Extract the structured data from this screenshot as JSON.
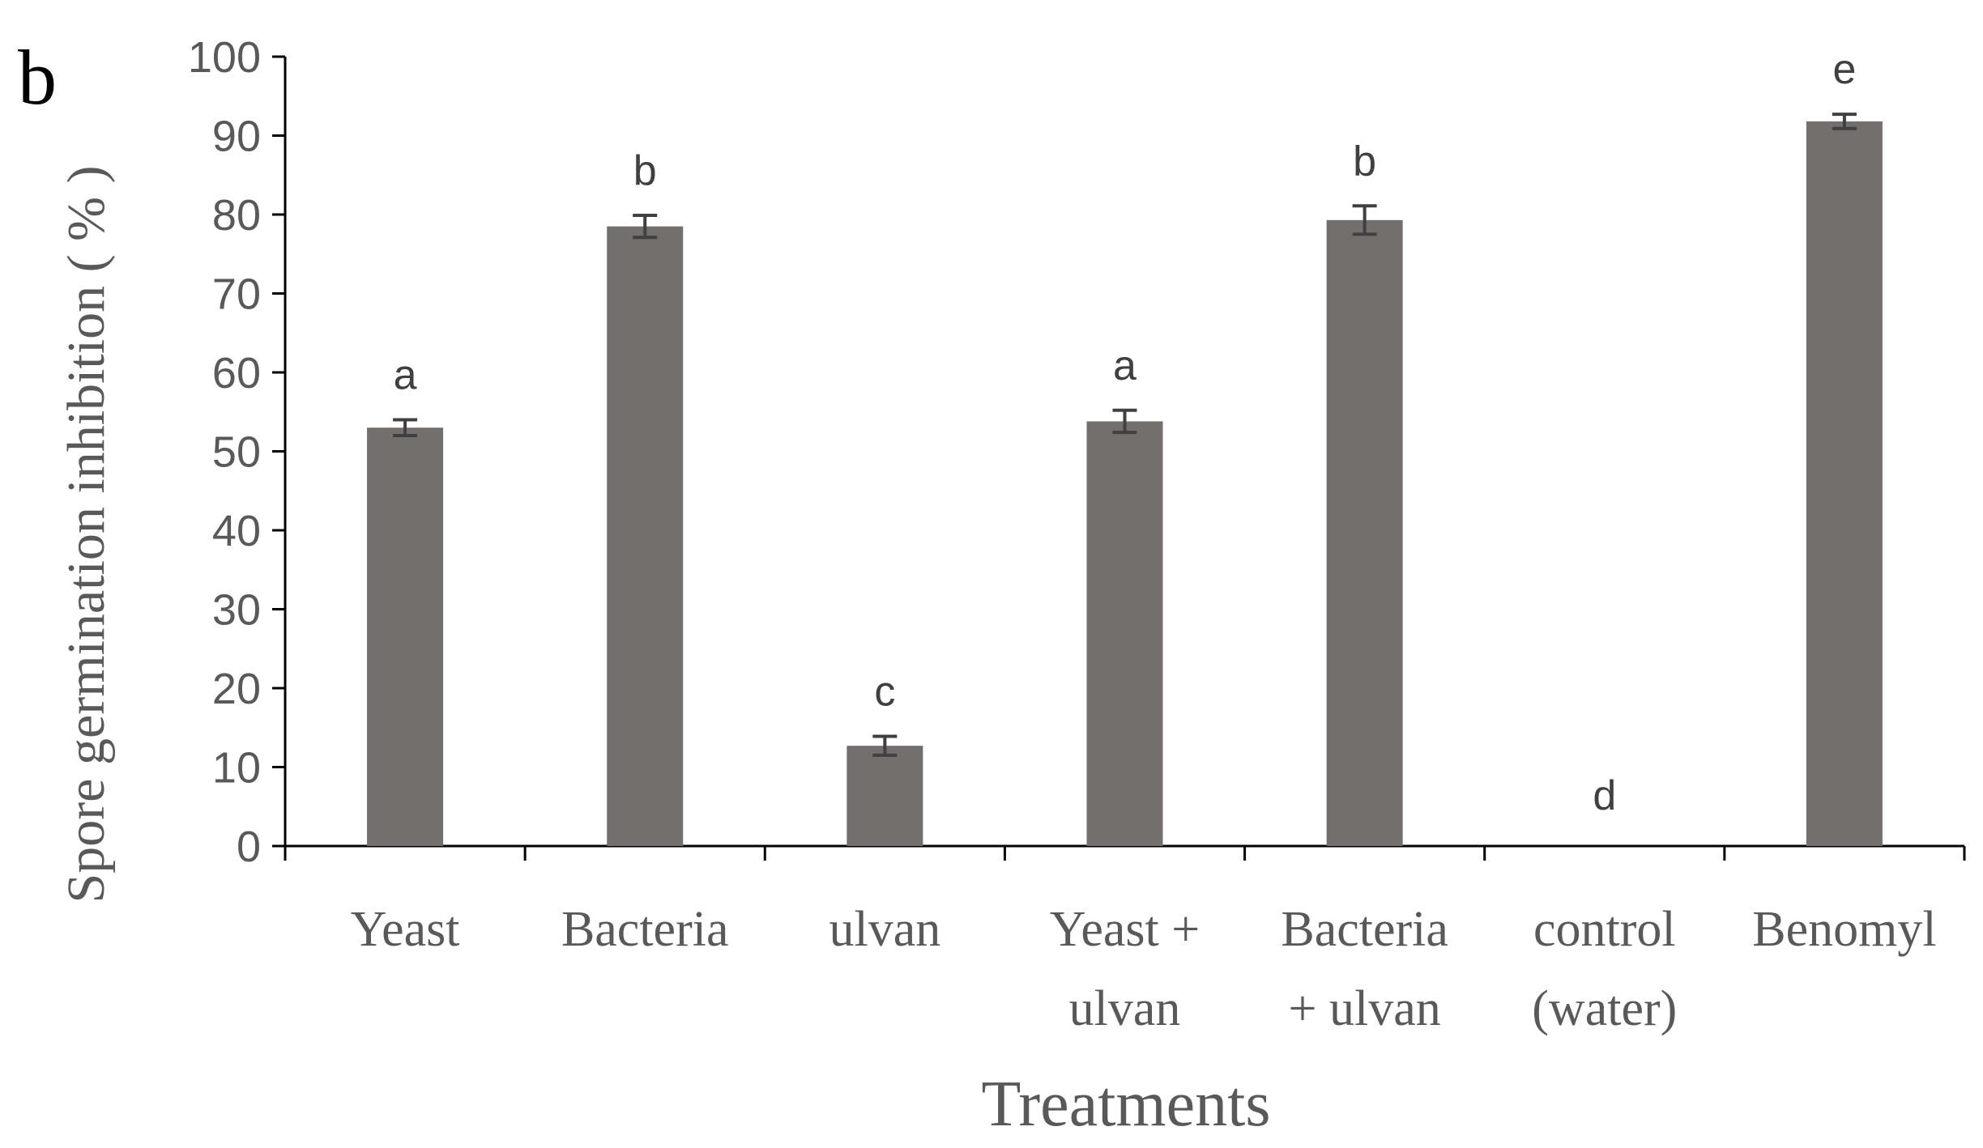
{
  "panel_label": "b",
  "colors": {
    "bar": "#736f6e",
    "axis": "#000000",
    "error_bar": "#404040",
    "text": "#595959"
  },
  "chart_data": {
    "type": "bar",
    "title": "",
    "xlabel": "Treatments",
    "ylabel": "Spore germination inhibition ( % )",
    "ylim": [
      0,
      100
    ],
    "yticks": [
      0,
      10,
      20,
      30,
      40,
      50,
      60,
      70,
      80,
      90,
      100
    ],
    "grid": false,
    "categories": [
      [
        "Yeast"
      ],
      [
        "Bacteria"
      ],
      [
        "ulvan"
      ],
      [
        "Yeast +",
        "ulvan"
      ],
      [
        "Bacteria",
        "+ ulvan"
      ],
      [
        "control",
        "(water)"
      ],
      [
        "Benomyl"
      ]
    ],
    "values": [
      53,
      78.5,
      12.7,
      53.8,
      79.3,
      0,
      91.8
    ],
    "errors": [
      1.0,
      1.4,
      1.2,
      1.4,
      1.8,
      0,
      0.9
    ],
    "significance_letters": [
      "a",
      "b",
      "c",
      "a",
      "b",
      "d",
      "e"
    ]
  }
}
